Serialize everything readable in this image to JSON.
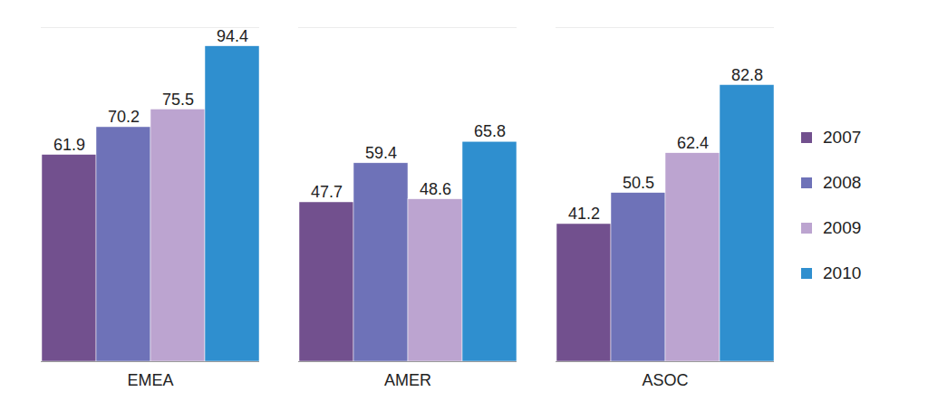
{
  "chart_data": {
    "type": "bar",
    "categories": [
      "EMEA",
      "AMER",
      "ASOC"
    ],
    "series": [
      {
        "name": "2007",
        "color": "#72508e",
        "values": [
          61.9,
          47.7,
          41.2
        ]
      },
      {
        "name": "2008",
        "color": "#6e72b8",
        "values": [
          70.2,
          59.4,
          50.5
        ]
      },
      {
        "name": "2009",
        "color": "#bca4d0",
        "values": [
          75.5,
          48.6,
          62.4
        ]
      },
      {
        "name": "2010",
        "color": "#2f8fcf",
        "values": [
          94.4,
          65.8,
          82.8
        ]
      }
    ],
    "ylim": [
      0,
      100
    ],
    "data_labels": true,
    "tick_labels": "x",
    "legend": "right"
  }
}
